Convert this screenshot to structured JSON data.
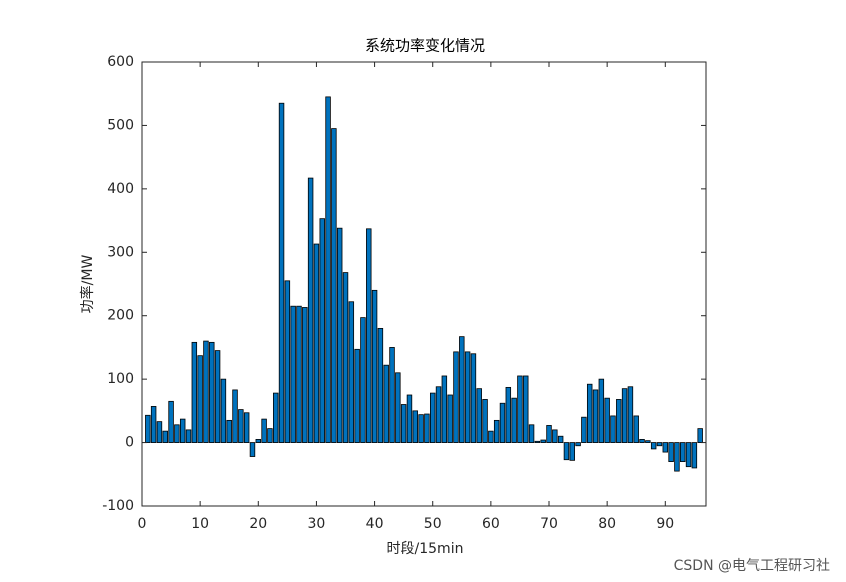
{
  "chart_data": {
    "type": "bar",
    "title": "系统功率变化情况",
    "x_label": "时段/15min",
    "y_label": "功率/MW",
    "x": [
      1,
      2,
      3,
      4,
      5,
      6,
      7,
      8,
      9,
      10,
      11,
      12,
      13,
      14,
      15,
      16,
      17,
      18,
      19,
      20,
      21,
      22,
      23,
      24,
      25,
      26,
      27,
      28,
      29,
      30,
      31,
      32,
      33,
      34,
      35,
      36,
      37,
      38,
      39,
      40,
      41,
      42,
      43,
      44,
      45,
      46,
      47,
      48,
      49,
      50,
      51,
      52,
      53,
      54,
      55,
      56,
      57,
      58,
      59,
      60,
      61,
      62,
      63,
      64,
      65,
      66,
      67,
      68,
      69,
      70,
      71,
      72,
      73,
      74,
      75,
      76,
      77,
      78,
      79,
      80,
      81,
      82,
      83,
      84,
      85,
      86,
      87,
      88,
      89,
      90,
      91,
      92,
      93,
      94,
      95,
      96
    ],
    "values": [
      43,
      57,
      33,
      18,
      65,
      28,
      37,
      20,
      158,
      137,
      160,
      158,
      145,
      100,
      35,
      83,
      52,
      47,
      -22,
      5,
      37,
      22,
      78,
      535,
      255,
      215,
      215,
      213,
      417,
      313,
      353,
      545,
      495,
      338,
      268,
      222,
      147,
      197,
      337,
      240,
      180,
      122,
      150,
      110,
      60,
      75,
      50,
      44,
      45,
      78,
      88,
      105,
      75,
      143,
      167,
      143,
      140,
      85,
      68,
      18,
      35,
      62,
      87,
      70,
      105,
      105,
      28,
      2,
      4,
      27,
      20,
      10,
      -27,
      -28,
      -5,
      40,
      92,
      83,
      100,
      70,
      42,
      68,
      85,
      88,
      42,
      5,
      3,
      -10,
      -5,
      -15,
      -30,
      -45,
      -30,
      -38,
      -40,
      22
    ],
    "color": "#0072BD",
    "xlim": [
      0,
      97
    ],
    "xticks": [
      0,
      10,
      20,
      30,
      40,
      50,
      60,
      70,
      80,
      90
    ],
    "ylim": [
      -100,
      600
    ],
    "yticks": [
      -100,
      0,
      100,
      200,
      300,
      400,
      500,
      600
    ],
    "watermark": "CSDN @电气工程研习社"
  }
}
